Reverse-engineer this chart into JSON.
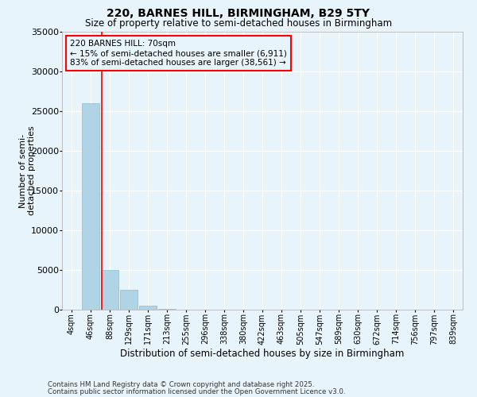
{
  "title1": "220, BARNES HILL, BIRMINGHAM, B29 5TY",
  "title2": "Size of property relative to semi-detached houses in Birmingham",
  "xlabel": "Distribution of semi-detached houses by size in Birmingham",
  "ylabel": "Number of semi-\ndetached properties",
  "categories": [
    "4sqm",
    "46sqm",
    "88sqm",
    "129sqm",
    "171sqm",
    "213sqm",
    "255sqm",
    "296sqm",
    "338sqm",
    "380sqm",
    "422sqm",
    "463sqm",
    "505sqm",
    "547sqm",
    "589sqm",
    "630sqm",
    "672sqm",
    "714sqm",
    "756sqm",
    "797sqm",
    "839sqm"
  ],
  "bar_values": [
    50,
    26000,
    5000,
    2500,
    500,
    80,
    20,
    10,
    5,
    2,
    1,
    0,
    0,
    0,
    0,
    0,
    0,
    0,
    0,
    0,
    0
  ],
  "bar_color": "#aed4e6",
  "bar_edge_color": "#8bbcce",
  "red_line_x": 1.58,
  "annotation_title": "220 BARNES HILL: 70sqm",
  "annotation_line1": "← 15% of semi-detached houses are smaller (6,911)",
  "annotation_line2": "83% of semi-detached houses are larger (38,561) →",
  "ylim": [
    0,
    35000
  ],
  "yticks": [
    0,
    5000,
    10000,
    15000,
    20000,
    25000,
    30000,
    35000
  ],
  "footer1": "Contains HM Land Registry data © Crown copyright and database right 2025.",
  "footer2": "Contains public sector information licensed under the Open Government Licence v3.0.",
  "bg_color": "#e8f4fb"
}
